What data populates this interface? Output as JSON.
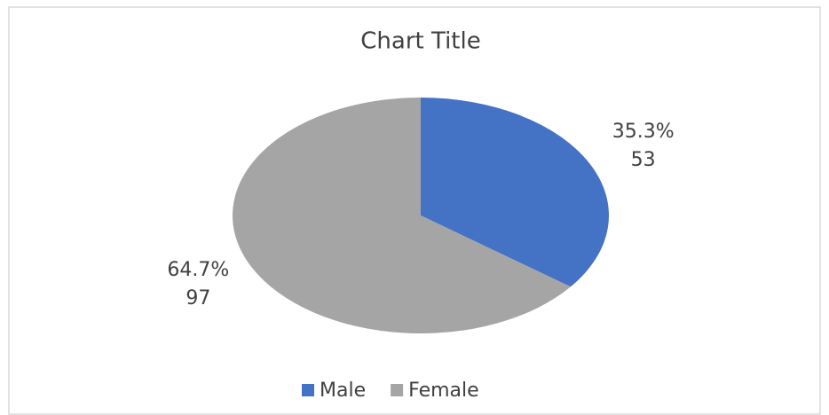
{
  "chart_data": {
    "type": "pie",
    "title": "Chart Title",
    "categories": [
      "Male",
      "Female"
    ],
    "values": [
      53,
      97
    ],
    "percent_labels": [
      "35.3%",
      "64.7%"
    ],
    "colors": [
      "#4472c4",
      "#a5a5a5"
    ],
    "legend": "bottom"
  }
}
